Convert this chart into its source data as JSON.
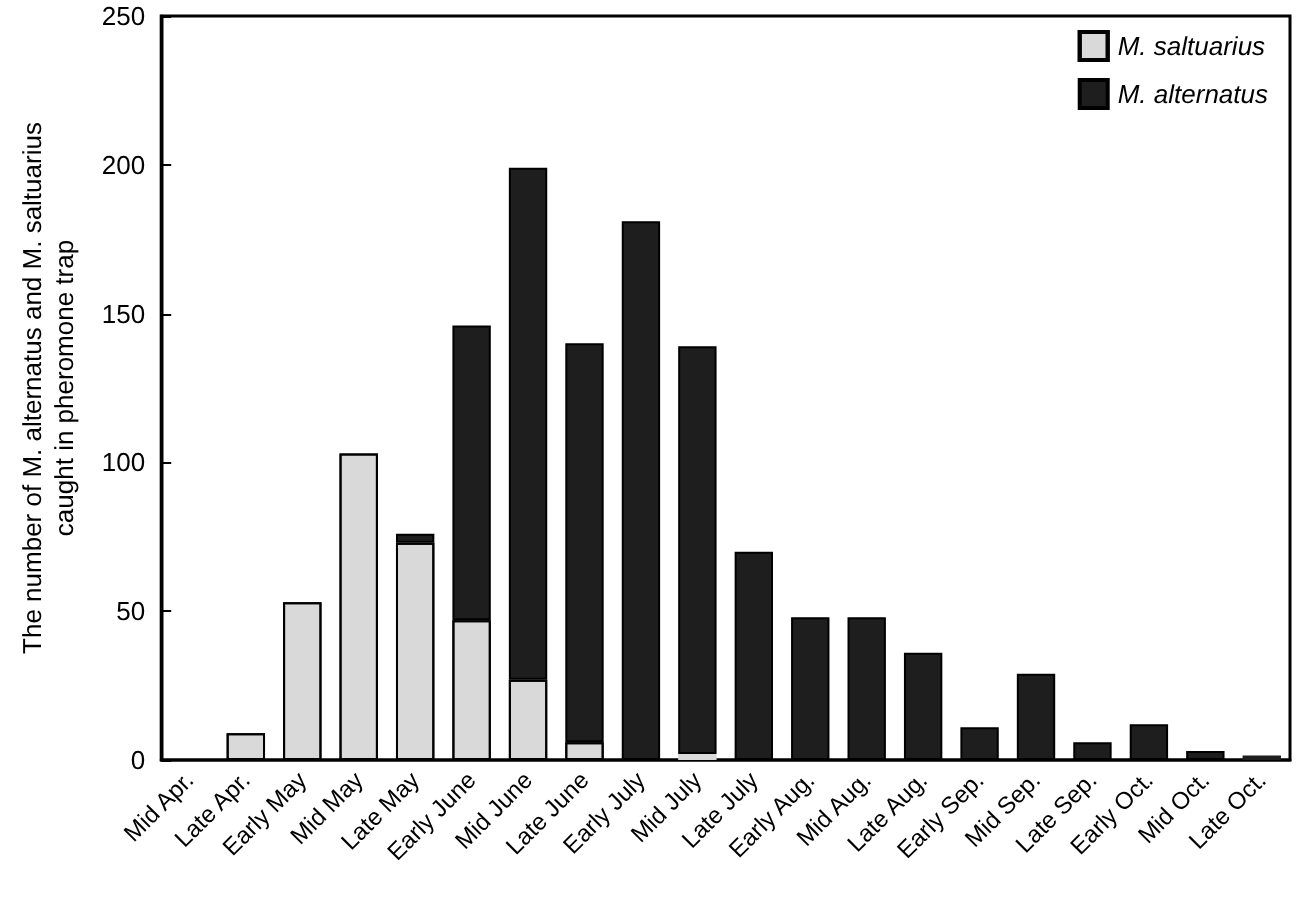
{
  "chart_data": {
    "type": "bar",
    "stacked": true,
    "ylabel": "The number of M. alternatus and M. saltuarius\ncaught in pheromone trap",
    "categories": [
      "Mid Apr.",
      "Late Apr.",
      "Early May",
      "Mid May",
      "Late May",
      "Early June",
      "Mid June",
      "Late June",
      "Early July",
      "Mid July",
      "Late July",
      "Early Aug.",
      "Mid Aug.",
      "Late Aug.",
      "Early Sep.",
      "Mid Sep.",
      "Late Sep.",
      "Early Oct.",
      "Mid Oct.",
      "Late Oct."
    ],
    "series": [
      {
        "name": "M. saltuarius",
        "color": "#d9d9d9",
        "values": [
          0,
          9,
          53,
          103,
          73,
          47,
          27,
          6,
          null,
          2,
          null,
          0,
          null,
          null,
          0,
          0,
          0,
          0,
          0,
          0
        ]
      },
      {
        "name": "M. alternatus",
        "color": "#1e1e1e",
        "values": [
          0,
          0,
          0,
          0,
          3,
          99,
          172,
          134,
          181,
          137,
          70,
          48,
          48,
          36,
          11,
          29,
          6,
          12,
          3,
          1.5
        ]
      }
    ],
    "ylim": [
      0,
      250
    ],
    "yticks": [
      0,
      50,
      100,
      150,
      200,
      250
    ],
    "grid": false,
    "legend": "top right"
  }
}
